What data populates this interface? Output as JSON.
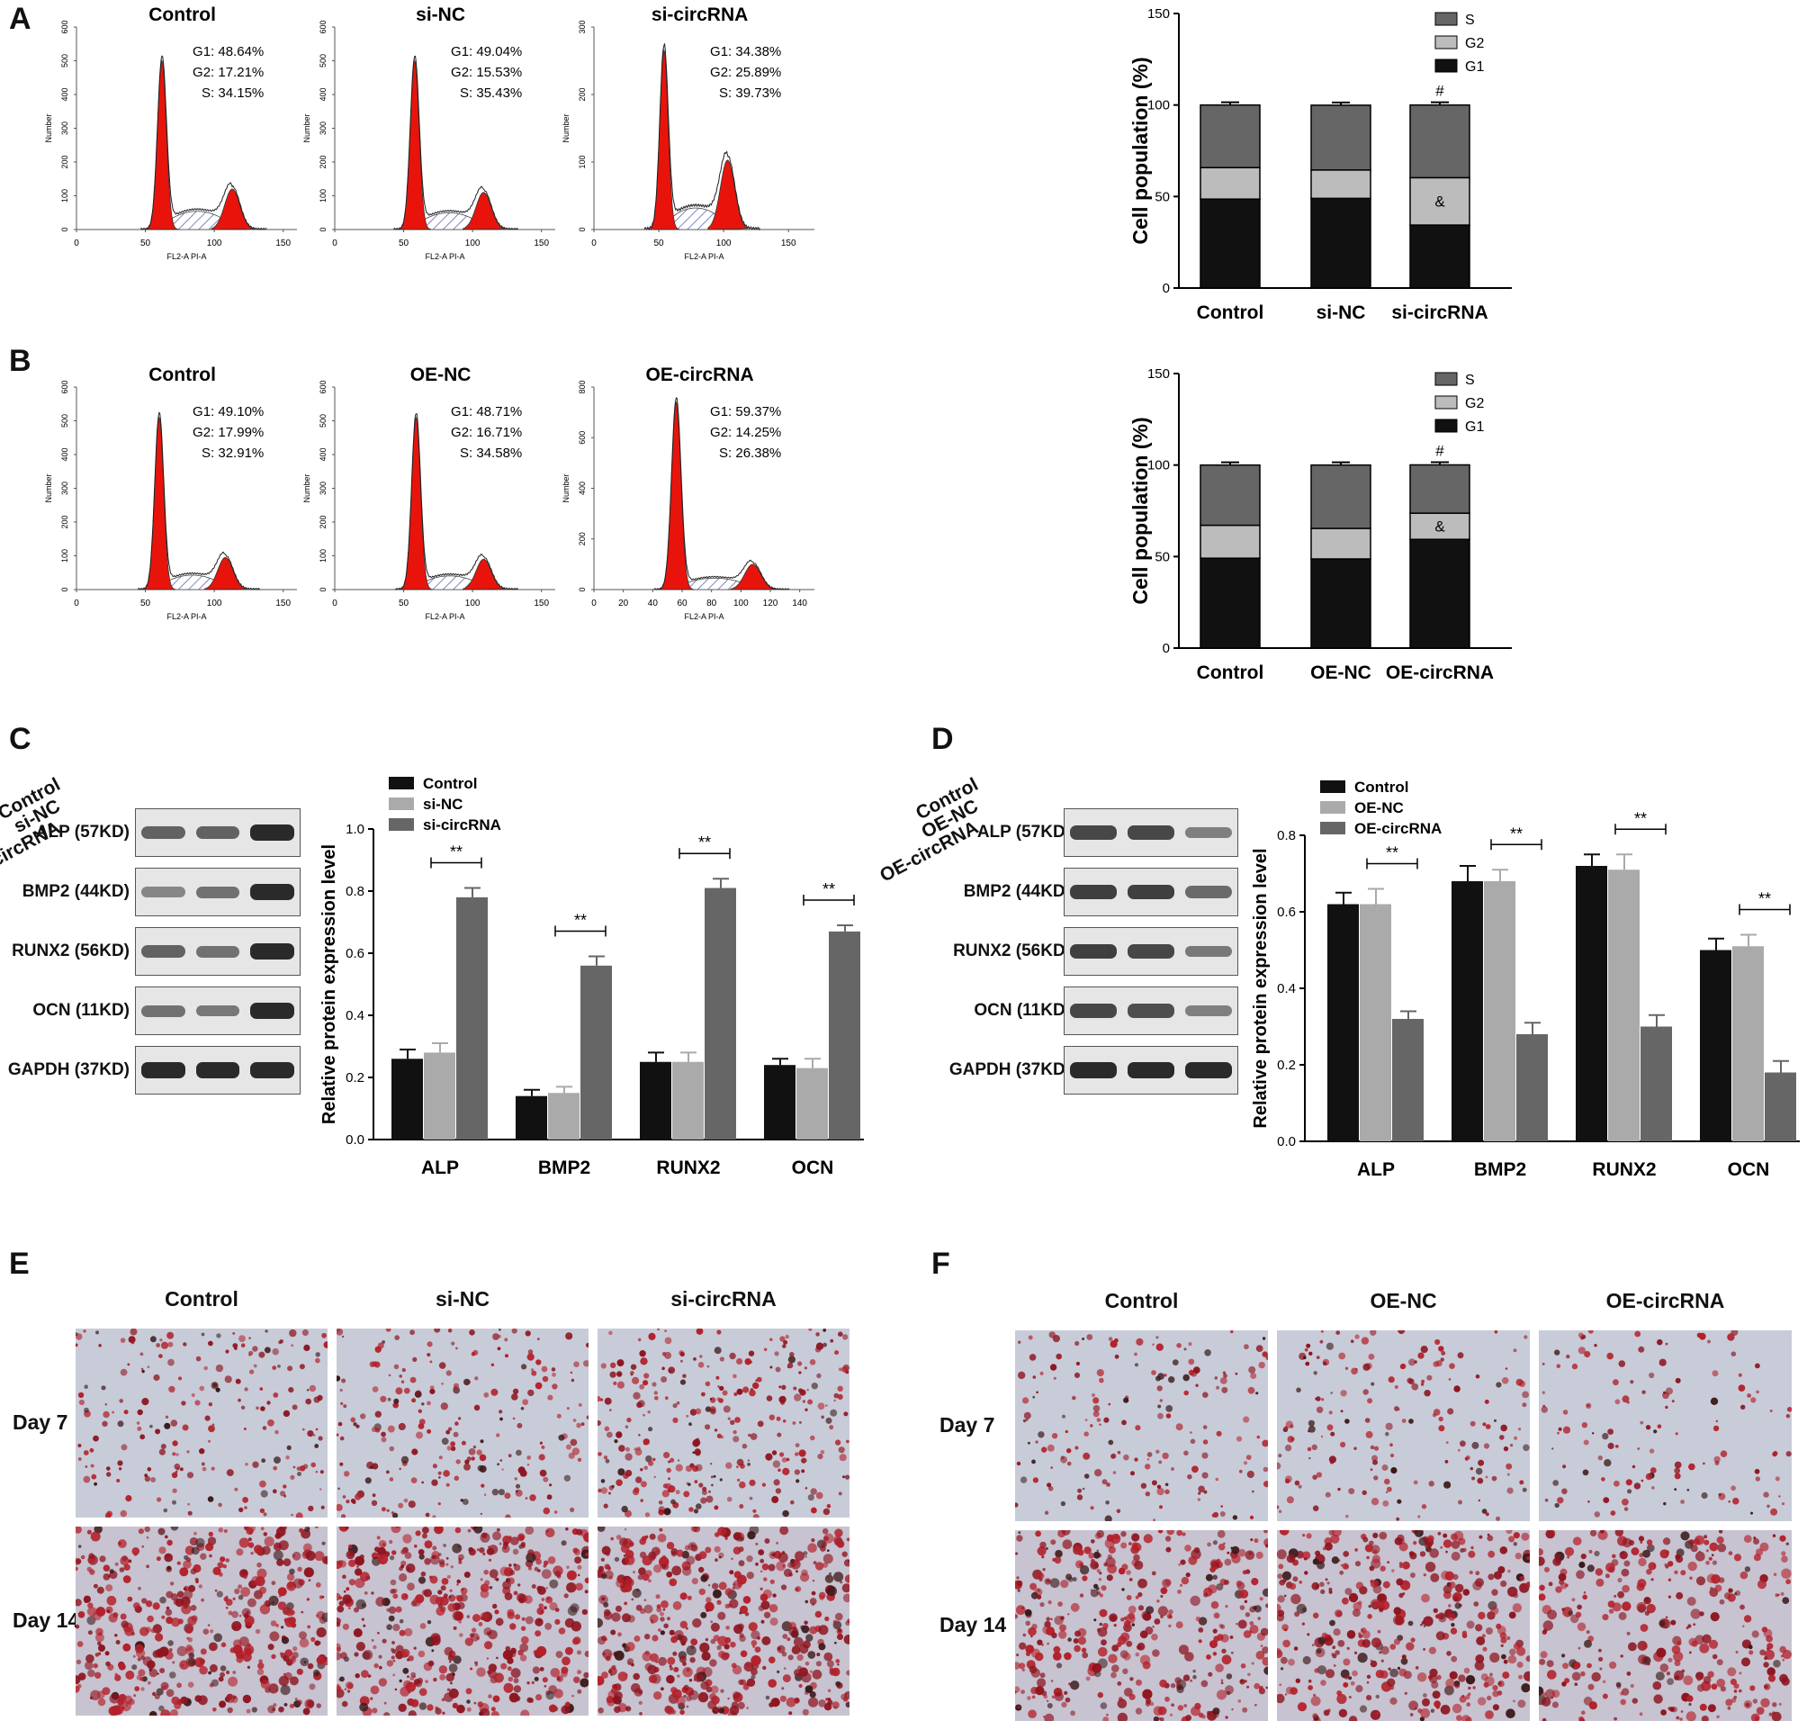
{
  "panels": {
    "A": "A",
    "B": "B",
    "C": "C",
    "D": "D",
    "E": "E",
    "F": "F"
  },
  "flow_A": [
    {
      "title": "Control",
      "stats": [
        "G1: 48.64%",
        "G2: 17.21%",
        "S: 34.15%"
      ],
      "ymax": 600,
      "yticks": [
        "0",
        "100",
        "200",
        "300",
        "400",
        "500",
        "600"
      ],
      "xticks": [
        "0",
        "50",
        "100",
        "150"
      ],
      "xmax": 160,
      "ylabel": "Number",
      "xlabel": "FL2-A PI-A",
      "peaks": {
        "g1": [
          62,
          500
        ],
        "g2": [
          113,
          120
        ]
      }
    },
    {
      "title": "si-NC",
      "stats": [
        "G1: 49.04%",
        "G2: 15.53%",
        "S: 35.43%"
      ],
      "ymax": 600,
      "yticks": [
        "0",
        "100",
        "200",
        "300",
        "400",
        "500",
        "600"
      ],
      "xticks": [
        "0",
        "50",
        "100",
        "150"
      ],
      "xmax": 160,
      "ylabel": "Number",
      "xlabel": "FL2-A PI-A",
      "peaks": {
        "g1": [
          58,
          500
        ],
        "g2": [
          108,
          110
        ]
      }
    },
    {
      "title": "si-circRNA",
      "stats": [
        "G1: 34.38%",
        "G2: 25.89%",
        "S: 39.73%"
      ],
      "ymax": 350,
      "yticks": [
        "0",
        "100",
        "200",
        "300"
      ],
      "xticks": [
        "0",
        "50",
        "100",
        "150"
      ],
      "xmax": 170,
      "ylabel": "Number",
      "xlabel": "FL2-A PI-A",
      "peaks": {
        "g1": [
          54,
          310
        ],
        "g2": [
          103,
          120
        ]
      }
    }
  ],
  "flow_B": [
    {
      "title": "Control",
      "stats": [
        "G1: 49.10%",
        "G2: 17.99%",
        "S: 32.91%"
      ],
      "ymax": 600,
      "yticks": [
        "0",
        "100",
        "200",
        "300",
        "400",
        "500",
        "600"
      ],
      "xticks": [
        "0",
        "50",
        "100",
        "150"
      ],
      "xmax": 160,
      "ylabel": "Number",
      "xlabel": "FL2-A PI-A",
      "peaks": {
        "g1": [
          60,
          510
        ],
        "g2": [
          108,
          95
        ]
      }
    },
    {
      "title": "OE-NC",
      "stats": [
        "G1: 48.71%",
        "G2: 16.71%",
        "S: 34.58%"
      ],
      "ymax": 600,
      "yticks": [
        "0",
        "100",
        "200",
        "300",
        "400",
        "500",
        "600"
      ],
      "xticks": [
        "0",
        "50",
        "100",
        "150"
      ],
      "xmax": 160,
      "ylabel": "Number",
      "xlabel": "FL2-A PI-A",
      "peaks": {
        "g1": [
          59,
          510
        ],
        "g2": [
          108,
          90
        ]
      }
    },
    {
      "title": "OE-circRNA",
      "stats": [
        "G1: 59.37%",
        "G2: 14.25%",
        "S: 26.38%"
      ],
      "ymax": 800,
      "yticks": [
        "0",
        "200",
        "400",
        "600",
        "800"
      ],
      "xticks": [
        "0",
        "20",
        "40",
        "60",
        "80",
        "100",
        "120",
        "140"
      ],
      "xmax": 150,
      "ylabel": "Number",
      "xlabel": "FL2-A PI-A",
      "peaks": {
        "g1": [
          56,
          740
        ],
        "g2": [
          108,
          100
        ]
      }
    }
  ],
  "chart_data": [
    {
      "type": "bar",
      "stacked": true,
      "panel": "A",
      "categories": [
        "Control",
        "si-NC",
        "si-circRNA"
      ],
      "series": [
        {
          "name": "G1",
          "values": [
            48.6,
            49.0,
            34.4
          ]
        },
        {
          "name": "G2",
          "values": [
            17.2,
            15.5,
            25.9
          ]
        },
        {
          "name": "S",
          "values": [
            34.2,
            35.4,
            39.7
          ]
        }
      ],
      "ylabel": "Cell population (%)",
      "ylim": [
        0,
        150
      ],
      "yticks": [
        "0",
        "50",
        "100",
        "150"
      ],
      "legend": "top-right",
      "annotations": [
        "#",
        "&"
      ],
      "colors": {
        "G1": "#111111",
        "G2": "#bcbcbc",
        "S": "#666666"
      }
    },
    {
      "type": "bar",
      "stacked": true,
      "panel": "B",
      "categories": [
        "Control",
        "OE-NC",
        "OE-circRNA"
      ],
      "series": [
        {
          "name": "G1",
          "values": [
            49.1,
            48.7,
            59.4
          ]
        },
        {
          "name": "G2",
          "values": [
            18.0,
            16.7,
            14.3
          ]
        },
        {
          "name": "S",
          "values": [
            32.9,
            34.6,
            26.4
          ]
        }
      ],
      "ylabel": "Cell population (%)",
      "ylim": [
        0,
        150
      ],
      "yticks": [
        "0",
        "50",
        "100",
        "150"
      ],
      "legend": "top-right",
      "annotations": [
        "#",
        "&"
      ],
      "colors": {
        "G1": "#111111",
        "G2": "#bcbcbc",
        "S": "#666666"
      }
    },
    {
      "type": "bar",
      "panel": "C",
      "categories": [
        "ALP",
        "BMP2",
        "RUNX2",
        "OCN"
      ],
      "series": [
        {
          "name": "Control",
          "values": [
            0.26,
            0.14,
            0.25,
            0.24
          ]
        },
        {
          "name": "si-NC",
          "values": [
            0.28,
            0.15,
            0.25,
            0.23
          ]
        },
        {
          "name": "si-circRNA",
          "values": [
            0.78,
            0.56,
            0.81,
            0.67
          ]
        }
      ],
      "errors": [
        [
          0.03,
          0.02,
          0.03,
          0.02
        ],
        [
          0.03,
          0.02,
          0.03,
          0.03
        ],
        [
          0.03,
          0.03,
          0.03,
          0.02
        ]
      ],
      "ylabel": "Relative protein expression level",
      "ylim": [
        0,
        1.0
      ],
      "yticks": [
        "0.0",
        "0.2",
        "0.4",
        "0.6",
        "0.8",
        "1.0"
      ],
      "sig": "**",
      "legend": "top-left",
      "colors": [
        "#111111",
        "#aaaaaa",
        "#666666"
      ]
    },
    {
      "type": "bar",
      "panel": "D",
      "categories": [
        "ALP",
        "BMP2",
        "RUNX2",
        "OCN"
      ],
      "series": [
        {
          "name": "Control",
          "values": [
            0.62,
            0.68,
            0.72,
            0.5
          ]
        },
        {
          "name": "OE-NC",
          "values": [
            0.62,
            0.68,
            0.71,
            0.51
          ]
        },
        {
          "name": "OE-circRNA",
          "values": [
            0.32,
            0.28,
            0.3,
            0.18
          ]
        }
      ],
      "errors": [
        [
          0.03,
          0.04,
          0.03,
          0.03
        ],
        [
          0.04,
          0.03,
          0.04,
          0.03
        ],
        [
          0.02,
          0.03,
          0.03,
          0.03
        ]
      ],
      "ylabel": "Relative protein expression level",
      "ylim": [
        0,
        0.8
      ],
      "yticks": [
        "0.0",
        "0.2",
        "0.4",
        "0.6",
        "0.8"
      ],
      "sig": "**",
      "legend": "top-left",
      "colors": [
        "#111111",
        "#aaaaaa",
        "#666666"
      ]
    }
  ],
  "blots": {
    "C": {
      "rows": [
        "ALP (57KD)",
        "BMP2 (44KD)",
        "RUNX2 (56KD)",
        "OCN (11KD)",
        "GAPDH (37KD)"
      ],
      "lanes": [
        "Control",
        "si-NC",
        "si-circRNA"
      ],
      "intensity": [
        [
          0.6,
          0.6,
          1.0
        ],
        [
          0.35,
          0.5,
          1.0
        ],
        [
          0.6,
          0.5,
          1.0
        ],
        [
          0.5,
          0.45,
          1.0
        ],
        [
          1,
          1,
          1
        ]
      ]
    },
    "D": {
      "rows": [
        "ALP (57KD)",
        "BMP2 (44KD)",
        "RUNX2 (56KD)",
        "OCN (11KD)",
        "GAPDH (37KD)"
      ],
      "lanes": [
        "Control",
        "OE-NC",
        "OE-circRNA"
      ],
      "intensity": [
        [
          0.8,
          0.8,
          0.4
        ],
        [
          0.85,
          0.85,
          0.55
        ],
        [
          0.85,
          0.8,
          0.45
        ],
        [
          0.8,
          0.75,
          0.4
        ],
        [
          1,
          1,
          1
        ]
      ]
    }
  },
  "staining": {
    "E": {
      "columns": [
        "Control",
        "si-NC",
        "si-circRNA"
      ],
      "rows": [
        "Day 7",
        "Day 14"
      ],
      "red_density": [
        [
          0.25,
          0.3,
          0.45
        ],
        [
          0.75,
          0.8,
          0.85
        ]
      ]
    },
    "F": {
      "columns": [
        "Control",
        "OE-NC",
        "OE-circRNA"
      ],
      "rows": [
        "Day 7",
        "Day 14"
      ],
      "red_density": [
        [
          0.2,
          0.2,
          0.1
        ],
        [
          0.65,
          0.65,
          0.5
        ]
      ]
    }
  }
}
